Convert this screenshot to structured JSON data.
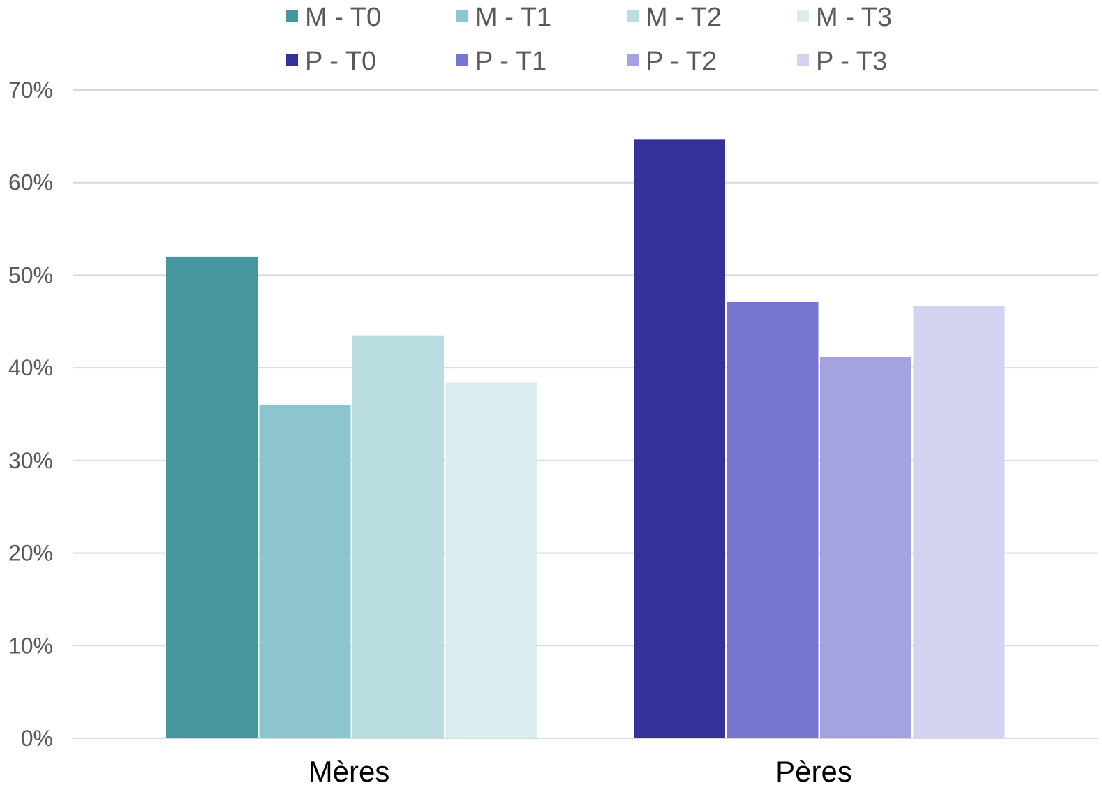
{
  "chart_data": {
    "type": "bar",
    "categories": [
      "Mères",
      "Pères"
    ],
    "ylim": [
      0,
      70
    ],
    "yticks": [
      "0%",
      "10%",
      "20%",
      "30%",
      "40%",
      "50%",
      "60%",
      "70%"
    ],
    "ytick_values": [
      0,
      10,
      20,
      30,
      40,
      50,
      60,
      70
    ],
    "grid": true,
    "legend_position": "top",
    "series": [
      {
        "name": "M - T0",
        "color": "#45979d",
        "values": [
          52,
          null
        ]
      },
      {
        "name": "M - T1",
        "color": "#8cc5ce",
        "values": [
          36,
          null
        ]
      },
      {
        "name": "M - T2",
        "color": "#badde1",
        "values": [
          43.5,
          null
        ]
      },
      {
        "name": "M - T3",
        "color": "#daedef",
        "values": [
          38.4,
          null
        ]
      },
      {
        "name": "P - T0",
        "color": "#343199",
        "values": [
          null,
          64.7
        ]
      },
      {
        "name": "P - T1",
        "color": "#7775d2",
        "values": [
          null,
          47.1
        ]
      },
      {
        "name": "P - T2",
        "color": "#a4a2df",
        "values": [
          null,
          41.2
        ]
      },
      {
        "name": "P - T3",
        "color": "#d3d2f1",
        "values": [
          null,
          46.7
        ]
      }
    ]
  }
}
